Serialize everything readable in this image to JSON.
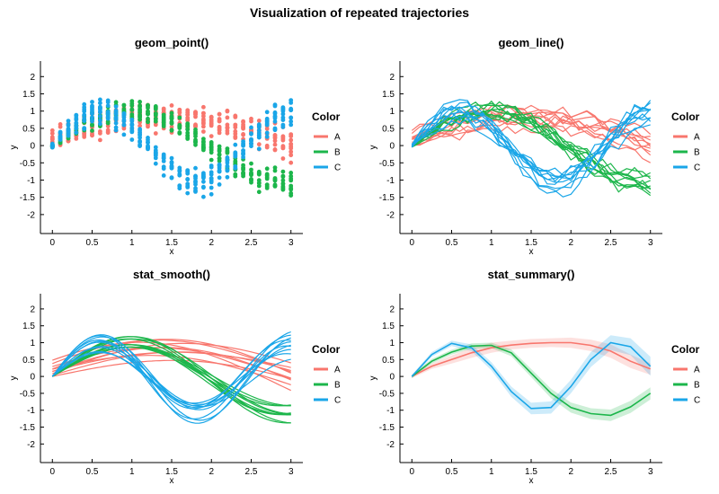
{
  "figure": {
    "title": "Visualization of repeated trajectories"
  },
  "colors": {
    "A": "#F8766D",
    "B": "#1CB64B",
    "C": "#1AA6E8"
  },
  "chart_data": [
    {
      "id": "p1",
      "title": "geom_point()",
      "type": "scatter",
      "xlabel": "x",
      "ylabel": "y",
      "xlim": [
        -0.15,
        3.15
      ],
      "ylim": [
        -2.55,
        2.45
      ],
      "xticks": [
        0,
        0.5,
        1,
        1.5,
        2,
        2.5,
        3
      ],
      "xtick_labels": [
        "0",
        "0.5",
        "1",
        "1.5",
        "2",
        "2.5",
        "3"
      ],
      "yticks": [
        2,
        1.5,
        1,
        0.5,
        0,
        -0.5,
        -1,
        -1.5,
        -2
      ],
      "ytick_labels": [
        "2",
        "1.5",
        "1",
        "0.5",
        "0",
        "-0.5",
        "-1",
        "-1.5",
        "-2"
      ],
      "legend": {
        "title": "Color",
        "entries": [
          "A",
          "B",
          "C"
        ]
      },
      "trajectories_per_group": 10,
      "n_x": 31,
      "x_range": [
        0,
        3
      ]
    },
    {
      "id": "p2",
      "title": "geom_line()",
      "type": "line",
      "xlabel": "x",
      "ylabel": "y",
      "xlim": [
        -0.15,
        3.15
      ],
      "ylim": [
        -2.55,
        2.45
      ],
      "xticks": [
        0,
        0.5,
        1,
        1.5,
        2,
        2.5,
        3
      ],
      "xtick_labels": [
        "0",
        "0.5",
        "1",
        "1.5",
        "2",
        "2.5",
        "3"
      ],
      "yticks": [
        2,
        1.5,
        1,
        0.5,
        0,
        -0.5,
        -1,
        -1.5,
        -2
      ],
      "ytick_labels": [
        "2",
        "1.5",
        "1",
        "0.5",
        "0",
        "-0.5",
        "-1",
        "-1.5",
        "-2"
      ],
      "legend": {
        "title": "Color",
        "entries": [
          "A",
          "B",
          "C"
        ]
      },
      "trajectories_per_group": 10,
      "n_x": 31,
      "x_range": [
        0,
        3
      ]
    },
    {
      "id": "p3",
      "title": "stat_smooth()",
      "type": "line",
      "xlabel": "x",
      "ylabel": "y",
      "xlim": [
        -0.15,
        3.15
      ],
      "ylim": [
        -2.55,
        2.45
      ],
      "xticks": [
        0,
        0.5,
        1,
        1.5,
        2,
        2.5,
        3
      ],
      "xtick_labels": [
        "0",
        "0.5",
        "1",
        "1.5",
        "2",
        "2.5",
        "3"
      ],
      "yticks": [
        2,
        1.5,
        1,
        0.5,
        0,
        -0.5,
        -1,
        -1.5,
        -2
      ],
      "ytick_labels": [
        "2",
        "1.5",
        "1",
        "0.5",
        "0",
        "-0.5",
        "-1",
        "-1.5",
        "-2"
      ],
      "legend": {
        "title": "Color",
        "entries": [
          "A",
          "B",
          "C"
        ]
      },
      "trajectories_per_group": 10,
      "n_x": 61,
      "x_range": [
        0,
        3
      ]
    },
    {
      "id": "p4",
      "title": "stat_summary()",
      "type": "area",
      "xlabel": "x",
      "ylabel": "y",
      "xlim": [
        -0.15,
        3.15
      ],
      "ylim": [
        -2.55,
        2.45
      ],
      "xticks": [
        0,
        0.5,
        1,
        1.5,
        2,
        2.5,
        3
      ],
      "xtick_labels": [
        "0",
        "0.5",
        "1",
        "1.5",
        "2",
        "2.5",
        "3"
      ],
      "yticks": [
        2,
        1.5,
        1,
        0.5,
        0,
        -0.5,
        -1,
        -1.5,
        -2
      ],
      "ytick_labels": [
        "2",
        "1.5",
        "1",
        "0.5",
        "0",
        "-0.5",
        "-1",
        "-1.5",
        "-2"
      ],
      "legend": {
        "title": "Color",
        "entries": [
          "A",
          "B",
          "C"
        ]
      },
      "series": [
        {
          "name": "A",
          "x": [
            0,
            0.25,
            0.5,
            0.75,
            1.0,
            1.25,
            1.5,
            1.75,
            2.0,
            2.25,
            2.5,
            2.75,
            3.0
          ],
          "mean": [
            0,
            0.3,
            0.5,
            0.7,
            0.85,
            0.93,
            0.98,
            1.0,
            1.0,
            0.92,
            0.75,
            0.45,
            0.22
          ],
          "lower": [
            -0.05,
            0.22,
            0.38,
            0.55,
            0.7,
            0.8,
            0.85,
            0.87,
            0.85,
            0.75,
            0.55,
            0.25,
            0.05
          ],
          "upper": [
            0.05,
            0.38,
            0.62,
            0.85,
            1.0,
            1.06,
            1.11,
            1.13,
            1.15,
            1.09,
            0.95,
            0.65,
            0.39
          ]
        },
        {
          "name": "B",
          "x": [
            0,
            0.25,
            0.5,
            0.75,
            1.0,
            1.25,
            1.5,
            1.75,
            2.0,
            2.25,
            2.5,
            2.75,
            3.0
          ],
          "mean": [
            0,
            0.45,
            0.72,
            0.9,
            0.92,
            0.7,
            0.1,
            -0.5,
            -0.92,
            -1.1,
            -1.15,
            -0.9,
            -0.5
          ],
          "lower": [
            -0.05,
            0.38,
            0.65,
            0.82,
            0.84,
            0.6,
            -0.02,
            -0.64,
            -1.07,
            -1.26,
            -1.32,
            -1.08,
            -0.68
          ],
          "upper": [
            0.05,
            0.52,
            0.79,
            0.98,
            1.0,
            0.8,
            0.22,
            -0.36,
            -0.77,
            -0.94,
            -0.98,
            -0.72,
            -0.32
          ]
        },
        {
          "name": "C",
          "x": [
            0,
            0.25,
            0.5,
            0.75,
            1.0,
            1.25,
            1.5,
            1.75,
            2.0,
            2.25,
            2.5,
            2.75,
            3.0
          ],
          "mean": [
            0,
            0.65,
            0.98,
            0.85,
            0.3,
            -0.45,
            -0.95,
            -0.92,
            -0.3,
            0.5,
            1.0,
            0.88,
            0.3
          ],
          "lower": [
            -0.05,
            0.58,
            0.9,
            0.75,
            0.18,
            -0.6,
            -1.12,
            -1.1,
            -0.5,
            0.28,
            0.78,
            0.63,
            0.02
          ],
          "upper": [
            0.05,
            0.72,
            1.06,
            0.95,
            0.42,
            -0.3,
            -0.78,
            -0.74,
            -0.1,
            0.72,
            1.22,
            1.13,
            0.58
          ]
        }
      ]
    }
  ]
}
